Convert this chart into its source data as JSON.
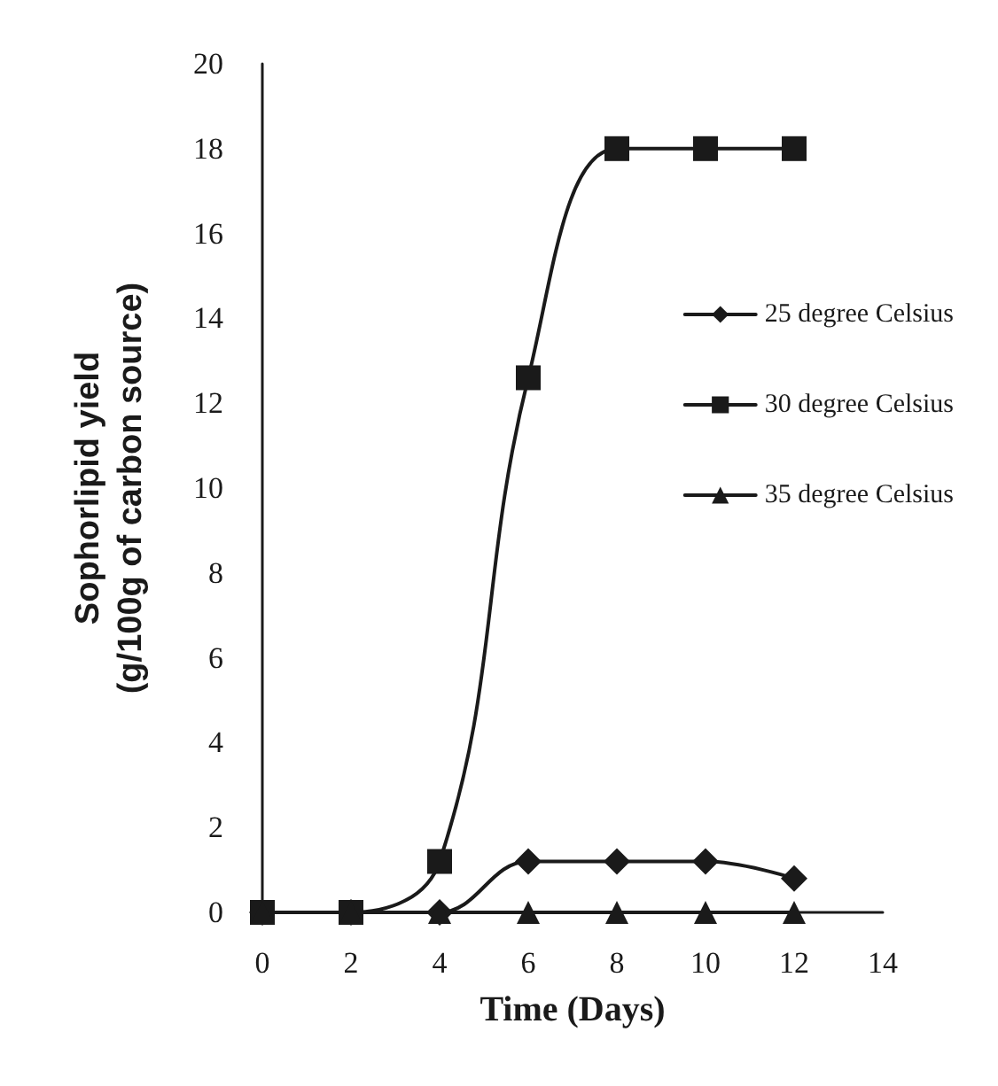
{
  "chart_data": {
    "type": "line",
    "xlabel": "Time (Days)",
    "ylabel": "Sophorlipid yield\n(g/100g of carbon source)",
    "x": [
      0,
      2,
      4,
      6,
      8,
      10,
      12
    ],
    "series": [
      {
        "name": "25 degree Celsius",
        "color": "#1a1a1a",
        "marker": "diamond",
        "values": [
          0,
          0,
          0,
          1.2,
          1.2,
          1.2,
          0.8
        ]
      },
      {
        "name": "30 degree Celsius",
        "color": "#1a1a1a",
        "marker": "square",
        "values": [
          0,
          0,
          1.2,
          12.6,
          18,
          18,
          18
        ]
      },
      {
        "name": "35 degree Celsius",
        "color": "#1a1a1a",
        "marker": "triangle",
        "values": [
          0,
          0,
          0,
          0,
          0,
          0,
          0
        ]
      }
    ],
    "xlim": [
      0,
      14
    ],
    "xticks": [
      0,
      2,
      4,
      6,
      8,
      10,
      12,
      14
    ],
    "ylim": [
      0,
      20
    ],
    "yticks": [
      0,
      2,
      4,
      6,
      8,
      10,
      12,
      14,
      16,
      18,
      20
    ],
    "grid": false,
    "legend": "right",
    "line_style": "solid"
  }
}
